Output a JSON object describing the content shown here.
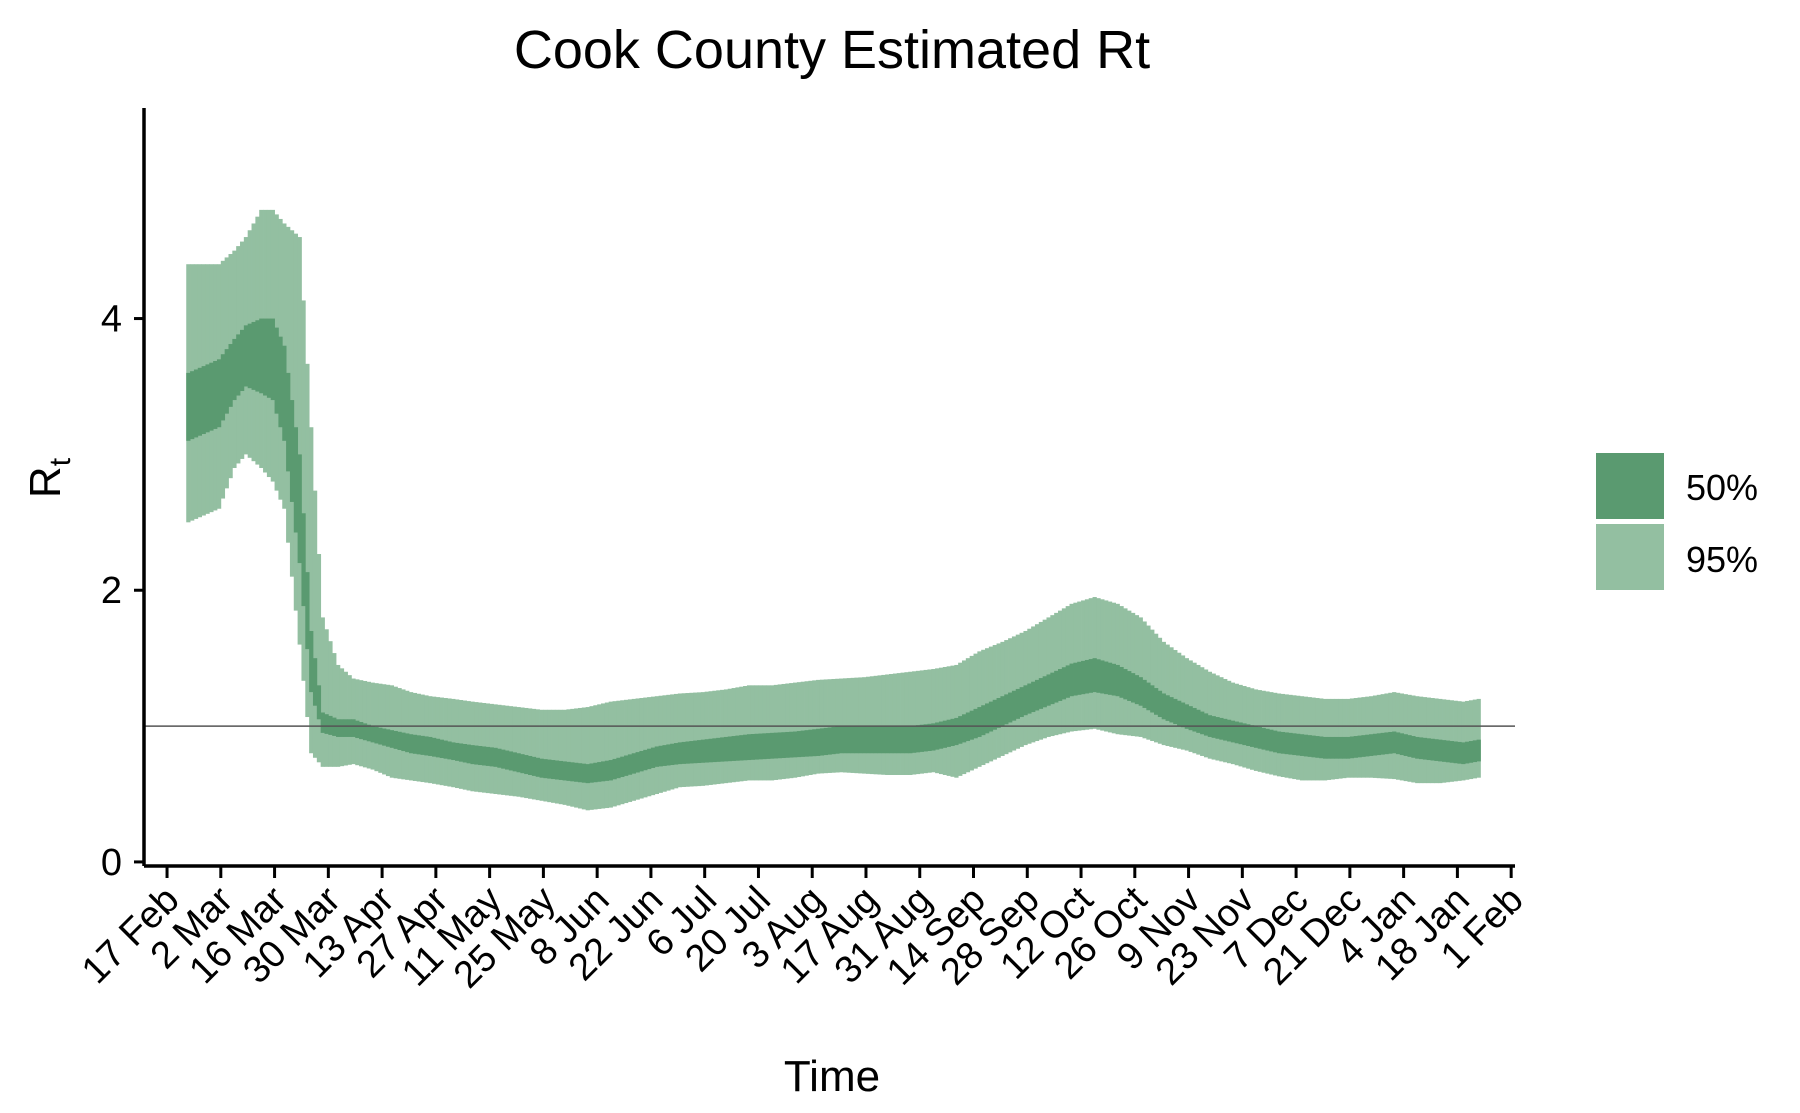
{
  "chart_data": {
    "type": "area",
    "title": "Cook County Estimated Rt",
    "xlabel": "Time",
    "ylabel": "R",
    "ylabel_subscript": "t",
    "x_type": "date",
    "xlim": [
      "2020-02-11",
      "2021-02-02"
    ],
    "ylim": [
      -0.03,
      5.55
    ],
    "y_ticks": [
      0,
      2,
      4
    ],
    "x_ticks": [
      {
        "date": "2020-02-17",
        "label": "17 Feb"
      },
      {
        "date": "2020-03-02",
        "label": "2 Mar"
      },
      {
        "date": "2020-03-16",
        "label": "16 Mar"
      },
      {
        "date": "2020-03-30",
        "label": "30 Mar"
      },
      {
        "date": "2020-04-13",
        "label": "13 Apr"
      },
      {
        "date": "2020-04-27",
        "label": "27 Apr"
      },
      {
        "date": "2020-05-11",
        "label": "11 May"
      },
      {
        "date": "2020-05-25",
        "label": "25 May"
      },
      {
        "date": "2020-06-08",
        "label": "8 Jun"
      },
      {
        "date": "2020-06-22",
        "label": "22 Jun"
      },
      {
        "date": "2020-07-06",
        "label": "6 Jul"
      },
      {
        "date": "2020-07-20",
        "label": "20 Jul"
      },
      {
        "date": "2020-08-03",
        "label": "3 Aug"
      },
      {
        "date": "2020-08-17",
        "label": "17 Aug"
      },
      {
        "date": "2020-08-31",
        "label": "31 Aug"
      },
      {
        "date": "2020-09-14",
        "label": "14 Sep"
      },
      {
        "date": "2020-09-28",
        "label": "28 Sep"
      },
      {
        "date": "2020-10-12",
        "label": "12 Oct"
      },
      {
        "date": "2020-10-26",
        "label": "26 Oct"
      },
      {
        "date": "2020-11-09",
        "label": "9 Nov"
      },
      {
        "date": "2020-11-23",
        "label": "23 Nov"
      },
      {
        "date": "2020-12-07",
        "label": "7 Dec"
      },
      {
        "date": "2020-12-21",
        "label": "21 Dec"
      },
      {
        "date": "2021-01-04",
        "label": "4 Jan"
      },
      {
        "date": "2021-01-18",
        "label": "18 Jan"
      },
      {
        "date": "2021-02-01",
        "label": "1 Feb"
      }
    ],
    "reference_line": {
      "y": 1
    },
    "legend": {
      "position": "right",
      "entries": [
        "50%",
        "95%"
      ]
    },
    "colors": {
      "ci50": "#5a9a70",
      "ci95": "#93bfa1",
      "axis": "#000000",
      "reference": "#555555"
    },
    "grid": false,
    "series": [
      {
        "name": "95%",
        "x": [
          "2020-02-22",
          "2020-03-01",
          "2020-03-05",
          "2020-03-08",
          "2020-03-12",
          "2020-03-15",
          "2020-03-18",
          "2020-03-22",
          "2020-03-25",
          "2020-03-28",
          "2020-04-01",
          "2020-04-05",
          "2020-04-10",
          "2020-04-15",
          "2020-04-20",
          "2020-04-25",
          "2020-05-01",
          "2020-05-06",
          "2020-05-12",
          "2020-05-18",
          "2020-05-24",
          "2020-05-30",
          "2020-06-05",
          "2020-06-11",
          "2020-06-17",
          "2020-06-23",
          "2020-06-29",
          "2020-07-05",
          "2020-07-11",
          "2020-07-17",
          "2020-07-23",
          "2020-07-29",
          "2020-08-04",
          "2020-08-10",
          "2020-08-16",
          "2020-08-22",
          "2020-08-28",
          "2020-09-03",
          "2020-09-09",
          "2020-09-15",
          "2020-09-21",
          "2020-09-27",
          "2020-10-03",
          "2020-10-09",
          "2020-10-15",
          "2020-10-21",
          "2020-10-27",
          "2020-11-02",
          "2020-11-08",
          "2020-11-14",
          "2020-11-20",
          "2020-11-26",
          "2020-12-02",
          "2020-12-08",
          "2020-12-14",
          "2020-12-20",
          "2020-12-26",
          "2021-01-01",
          "2021-01-07",
          "2021-01-13",
          "2021-01-19",
          "2021-01-23"
        ],
        "lower": [
          2.5,
          2.6,
          2.9,
          3.0,
          2.9,
          2.8,
          2.6,
          1.6,
          0.8,
          0.7,
          0.7,
          0.72,
          0.68,
          0.62,
          0.6,
          0.58,
          0.55,
          0.52,
          0.5,
          0.48,
          0.45,
          0.42,
          0.38,
          0.4,
          0.45,
          0.5,
          0.55,
          0.56,
          0.58,
          0.6,
          0.6,
          0.62,
          0.65,
          0.66,
          0.65,
          0.64,
          0.64,
          0.66,
          0.62,
          0.7,
          0.78,
          0.86,
          0.92,
          0.96,
          0.98,
          0.94,
          0.92,
          0.86,
          0.82,
          0.76,
          0.72,
          0.67,
          0.63,
          0.6,
          0.6,
          0.62,
          0.62,
          0.61,
          0.58,
          0.58,
          0.6,
          0.62
        ],
        "upper": [
          4.4,
          4.4,
          4.5,
          4.6,
          4.8,
          4.8,
          4.7,
          4.6,
          3.2,
          1.8,
          1.45,
          1.35,
          1.32,
          1.3,
          1.25,
          1.22,
          1.2,
          1.18,
          1.16,
          1.14,
          1.12,
          1.12,
          1.14,
          1.18,
          1.2,
          1.22,
          1.24,
          1.25,
          1.27,
          1.3,
          1.3,
          1.32,
          1.34,
          1.35,
          1.36,
          1.38,
          1.4,
          1.42,
          1.45,
          1.55,
          1.62,
          1.7,
          1.8,
          1.9,
          1.95,
          1.9,
          1.8,
          1.62,
          1.5,
          1.4,
          1.32,
          1.27,
          1.24,
          1.22,
          1.2,
          1.2,
          1.22,
          1.25,
          1.22,
          1.2,
          1.18,
          1.2
        ]
      },
      {
        "name": "50%",
        "x": [
          "2020-02-22",
          "2020-03-01",
          "2020-03-05",
          "2020-03-08",
          "2020-03-12",
          "2020-03-15",
          "2020-03-18",
          "2020-03-22",
          "2020-03-25",
          "2020-03-28",
          "2020-04-01",
          "2020-04-05",
          "2020-04-10",
          "2020-04-15",
          "2020-04-20",
          "2020-04-25",
          "2020-05-01",
          "2020-05-06",
          "2020-05-12",
          "2020-05-18",
          "2020-05-24",
          "2020-05-30",
          "2020-06-05",
          "2020-06-11",
          "2020-06-17",
          "2020-06-23",
          "2020-06-29",
          "2020-07-05",
          "2020-07-11",
          "2020-07-17",
          "2020-07-23",
          "2020-07-29",
          "2020-08-04",
          "2020-08-10",
          "2020-08-16",
          "2020-08-22",
          "2020-08-28",
          "2020-09-03",
          "2020-09-09",
          "2020-09-15",
          "2020-09-21",
          "2020-09-27",
          "2020-10-03",
          "2020-10-09",
          "2020-10-15",
          "2020-10-21",
          "2020-10-27",
          "2020-11-02",
          "2020-11-08",
          "2020-11-14",
          "2020-11-20",
          "2020-11-26",
          "2020-12-02",
          "2020-12-08",
          "2020-12-14",
          "2020-12-20",
          "2020-12-26",
          "2021-01-01",
          "2021-01-07",
          "2021-01-13",
          "2021-01-19",
          "2021-01-23"
        ],
        "lower": [
          3.1,
          3.2,
          3.4,
          3.5,
          3.45,
          3.4,
          3.1,
          2.2,
          1.25,
          0.95,
          0.92,
          0.92,
          0.88,
          0.84,
          0.8,
          0.78,
          0.75,
          0.72,
          0.7,
          0.66,
          0.62,
          0.6,
          0.58,
          0.6,
          0.65,
          0.7,
          0.72,
          0.73,
          0.74,
          0.75,
          0.76,
          0.77,
          0.78,
          0.8,
          0.8,
          0.8,
          0.8,
          0.82,
          0.86,
          0.92,
          1.0,
          1.08,
          1.15,
          1.22,
          1.25,
          1.22,
          1.15,
          1.05,
          0.98,
          0.92,
          0.88,
          0.84,
          0.8,
          0.78,
          0.76,
          0.76,
          0.78,
          0.8,
          0.76,
          0.74,
          0.72,
          0.74
        ],
        "upper": [
          3.6,
          3.7,
          3.85,
          3.95,
          4.0,
          4.0,
          3.8,
          3.0,
          1.7,
          1.1,
          1.05,
          1.05,
          1.0,
          0.97,
          0.94,
          0.92,
          0.88,
          0.86,
          0.84,
          0.8,
          0.76,
          0.74,
          0.72,
          0.75,
          0.8,
          0.85,
          0.88,
          0.9,
          0.92,
          0.94,
          0.95,
          0.96,
          0.98,
          1.0,
          1.0,
          1.0,
          1.0,
          1.02,
          1.06,
          1.14,
          1.22,
          1.3,
          1.38,
          1.46,
          1.5,
          1.45,
          1.36,
          1.24,
          1.16,
          1.08,
          1.04,
          1.0,
          0.96,
          0.94,
          0.92,
          0.92,
          0.94,
          0.96,
          0.92,
          0.9,
          0.88,
          0.9
        ]
      }
    ]
  }
}
